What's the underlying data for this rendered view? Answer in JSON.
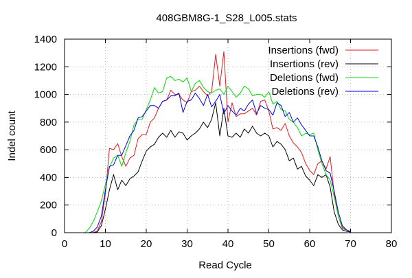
{
  "chart_data": {
    "type": "line",
    "title": "408GBM8G-1_S28_L005.stats",
    "xlabel": "Read Cycle",
    "ylabel": "Indel count",
    "xlim": [
      0,
      80
    ],
    "ylim": [
      0,
      1400
    ],
    "xticks": [
      "0",
      "10",
      "20",
      "30",
      "40",
      "50",
      "60",
      "70",
      "80"
    ],
    "yticks": [
      "0",
      "200",
      "400",
      "600",
      "800",
      "1000",
      "1200",
      "1400"
    ],
    "grid": true,
    "legend_position": "top-right",
    "series": [
      {
        "name": "Insertions (fwd)",
        "color": "#e31a1c",
        "x": [
          5,
          6,
          7,
          8,
          9,
          10,
          11,
          12,
          13,
          14,
          15,
          16,
          17,
          18,
          19,
          20,
          21,
          22,
          23,
          24,
          25,
          26,
          27,
          28,
          29,
          30,
          31,
          32,
          33,
          34,
          35,
          36,
          37,
          38,
          39,
          40,
          41,
          42,
          43,
          44,
          45,
          46,
          47,
          48,
          49,
          50,
          51,
          52,
          53,
          54,
          55,
          56,
          57,
          58,
          59,
          60,
          61,
          62,
          63,
          64,
          65,
          66,
          67,
          68,
          69,
          70
        ],
        "y": [
          0,
          0,
          2,
          10,
          80,
          280,
          610,
          600,
          645,
          550,
          480,
          540,
          560,
          680,
          710,
          710,
          800,
          830,
          900,
          950,
          960,
          1030,
          1000,
          1000,
          960,
          940,
          1020,
          1030,
          1060,
          1020,
          990,
          1020,
          1290,
          1060,
          1310,
          800,
          940,
          840,
          860,
          860,
          880,
          900,
          850,
          950,
          960,
          880,
          750,
          760,
          740,
          790,
          700,
          650,
          620,
          580,
          500,
          450,
          420,
          500,
          520,
          460,
          550,
          280,
          120,
          30,
          20,
          10
        ]
      },
      {
        "name": "Insertions (rev)",
        "color": "#000000",
        "x": [
          5,
          6,
          7,
          8,
          9,
          10,
          11,
          12,
          13,
          14,
          15,
          16,
          17,
          18,
          19,
          20,
          21,
          22,
          23,
          24,
          25,
          26,
          27,
          28,
          29,
          30,
          31,
          32,
          33,
          34,
          35,
          36,
          37,
          38,
          39,
          40,
          41,
          42,
          43,
          44,
          45,
          46,
          47,
          48,
          49,
          50,
          51,
          52,
          53,
          54,
          55,
          56,
          57,
          58,
          59,
          60,
          61,
          62,
          63,
          64,
          65,
          66,
          67,
          68,
          69,
          70
        ],
        "y": [
          0,
          0,
          0,
          5,
          50,
          170,
          310,
          420,
          310,
          380,
          340,
          390,
          410,
          440,
          520,
          590,
          620,
          640,
          690,
          720,
          690,
          740,
          690,
          730,
          720,
          670,
          700,
          720,
          750,
          800,
          760,
          820,
          940,
          700,
          900,
          700,
          690,
          720,
          690,
          750,
          720,
          770,
          720,
          700,
          720,
          700,
          620,
          660,
          640,
          600,
          520,
          540,
          460,
          480,
          410,
          380,
          340,
          420,
          400,
          420,
          330,
          150,
          60,
          20,
          10,
          5
        ]
      },
      {
        "name": "Deletions (fwd)",
        "color": "#00dd00",
        "x": [
          5,
          6,
          7,
          8,
          9,
          10,
          11,
          12,
          13,
          14,
          15,
          16,
          17,
          18,
          19,
          20,
          21,
          22,
          23,
          24,
          25,
          26,
          27,
          28,
          29,
          30,
          31,
          32,
          33,
          34,
          35,
          36,
          37,
          38,
          39,
          40,
          41,
          42,
          43,
          44,
          45,
          46,
          47,
          48,
          49,
          50,
          51,
          52,
          53,
          54,
          55,
          56,
          57,
          58,
          59,
          60,
          61,
          62,
          63,
          64,
          65,
          66,
          67,
          68,
          69,
          70
        ],
        "y": [
          0,
          30,
          80,
          150,
          230,
          350,
          470,
          540,
          560,
          480,
          580,
          660,
          780,
          820,
          820,
          890,
          960,
          1050,
          1010,
          1020,
          1120,
          1130,
          1100,
          1110,
          1090,
          1120,
          1020,
          1080,
          1100,
          1050,
          1020,
          1010,
          1030,
          1040,
          1000,
          1060,
          1020,
          980,
          1010,
          1060,
          1040,
          990,
          1000,
          1000,
          980,
          1020,
          930,
          950,
          890,
          880,
          820,
          800,
          760,
          700,
          720,
          710,
          720,
          600,
          500,
          420,
          380,
          260,
          120,
          40,
          20,
          10
        ]
      },
      {
        "name": "Deletions (rev)",
        "color": "#0000ee",
        "x": [
          5,
          6,
          7,
          8,
          9,
          10,
          11,
          12,
          13,
          14,
          15,
          16,
          17,
          18,
          19,
          20,
          21,
          22,
          23,
          24,
          25,
          26,
          27,
          28,
          29,
          30,
          31,
          32,
          33,
          34,
          35,
          36,
          37,
          38,
          39,
          40,
          41,
          42,
          43,
          44,
          45,
          46,
          47,
          48,
          49,
          50,
          51,
          52,
          53,
          54,
          55,
          56,
          57,
          58,
          59,
          60,
          61,
          62,
          63,
          64,
          65,
          66,
          67,
          68,
          69,
          70
        ],
        "y": [
          0,
          0,
          10,
          40,
          120,
          310,
          480,
          490,
          560,
          560,
          630,
          700,
          740,
          830,
          840,
          880,
          920,
          920,
          900,
          950,
          960,
          990,
          990,
          1010,
          870,
          950,
          960,
          1010,
          970,
          920,
          1000,
          910,
          950,
          1000,
          860,
          920,
          880,
          850,
          900,
          880,
          930,
          960,
          860,
          920,
          900,
          890,
          850,
          940,
          920,
          840,
          870,
          800,
          830,
          780,
          740,
          700,
          700,
          620,
          520,
          450,
          430,
          300,
          150,
          50,
          20,
          10
        ]
      }
    ]
  }
}
